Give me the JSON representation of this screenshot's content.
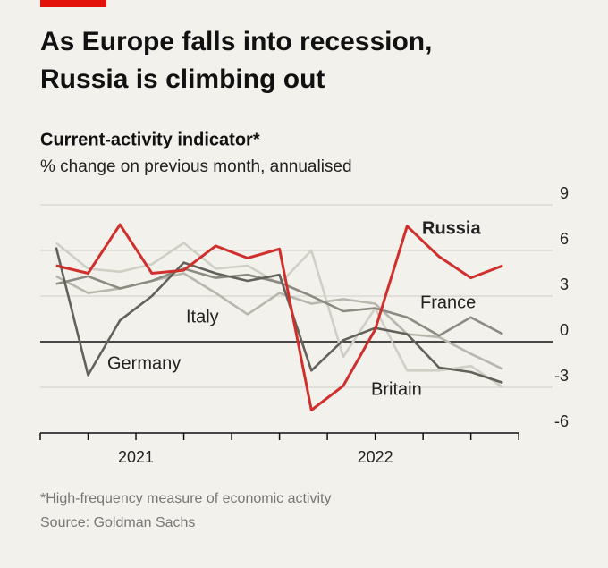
{
  "chart_data": {
    "type": "line",
    "title": "As Europe falls into recession, Russia is climbing out",
    "subtitle": "Current-activity indicator*",
    "y_label": "% change on previous month, annualised",
    "x": [
      1,
      2,
      3,
      4,
      5,
      6,
      7,
      8,
      9,
      10,
      11,
      12,
      13,
      14,
      15
    ],
    "xlim": [
      0.5,
      16
    ],
    "xticks": [
      0.5,
      2,
      3.5,
      5,
      6.5,
      8,
      9.5,
      11,
      12.5,
      14,
      15.5
    ],
    "xlabels": [
      {
        "value": 3.5,
        "label": "2021"
      },
      {
        "value": 11,
        "label": "2022"
      }
    ],
    "ylim": [
      -6,
      9
    ],
    "yticks": [
      9,
      6,
      3,
      0,
      -3,
      -6
    ],
    "grid": true,
    "series": [
      {
        "name": "Britain",
        "color": "#d0cfc6",
        "values": [
          6.5,
          4.8,
          4.6,
          5.1,
          6.5,
          4.8,
          5.0,
          3.8,
          6.0,
          -1.0,
          2.2,
          -1.9,
          -1.9,
          -1.6,
          -3.0
        ]
      },
      {
        "name": "Italy",
        "color": "#b8b7ad",
        "values": [
          4.3,
          3.2,
          3.5,
          4.0,
          4.5,
          3.2,
          1.8,
          3.2,
          2.5,
          2.8,
          2.5,
          0.5,
          0.3,
          -0.8,
          -1.8
        ]
      },
      {
        "name": "France",
        "color": "#8c8b82",
        "values": [
          3.8,
          4.3,
          3.5,
          4.0,
          4.8,
          4.2,
          4.4,
          3.9,
          3.0,
          2.0,
          2.2,
          1.6,
          0.4,
          1.6,
          0.5
        ]
      },
      {
        "name": "Germany",
        "color": "#63625a",
        "values": [
          6.2,
          -2.2,
          1.4,
          3.0,
          5.2,
          4.5,
          4.0,
          4.4,
          -1.9,
          0.1,
          0.9,
          0.5,
          -1.7,
          -2.0,
          -2.7
        ]
      },
      {
        "name": "Russia",
        "color": "#d0302d",
        "values": [
          5.0,
          4.5,
          7.7,
          4.5,
          4.7,
          6.3,
          5.5,
          6.1,
          -4.5,
          -2.9,
          0.8,
          7.6,
          5.6,
          4.2,
          5.0
        ]
      }
    ],
    "footnote": "*High-frequency measure of economic activity",
    "source": "Source: Goldman Sachs"
  }
}
